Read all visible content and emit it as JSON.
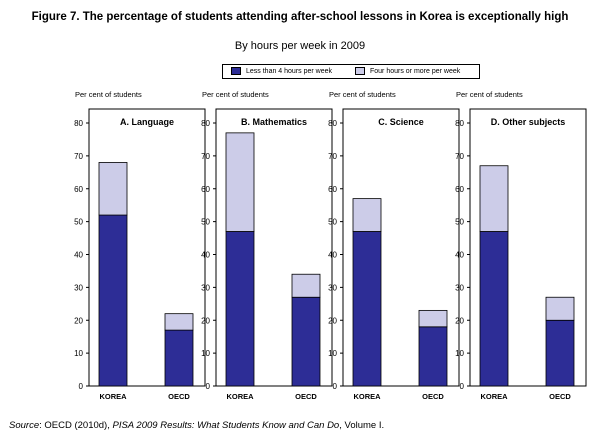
{
  "title": "Figure 7. The percentage of students attending after-school lessons in Korea is exceptionally high",
  "subtitle": "By hours per week in 2009",
  "colors": {
    "less": "#2d2d96",
    "more": "#cccce8"
  },
  "legend": {
    "less_label": "Less than 4 hours per week",
    "more_label": "Four hours or more per week"
  },
  "footer": {
    "source_label": "Source",
    "source_text": ": OECD (2010d), ",
    "source_title": "PISA 2009 Results: What Students Know and Can Do",
    "source_tail": ", Volume I."
  },
  "chart_data": [
    {
      "type": "bar",
      "title": "A. Language",
      "ylabel": "Per cent of students",
      "ylim": [
        0,
        80
      ],
      "yticks": [
        0,
        10,
        20,
        30,
        40,
        50,
        60,
        70,
        80
      ],
      "categories": [
        "KOREA",
        "OECD"
      ],
      "series": [
        {
          "name": "Less than 4 hours per week",
          "values": [
            52,
            17
          ]
        },
        {
          "name": "Four hours or more per week",
          "values": [
            16,
            5
          ]
        }
      ]
    },
    {
      "type": "bar",
      "title": "B. Mathematics",
      "ylabel": "Per cent of students",
      "ylim": [
        0,
        80
      ],
      "yticks": [
        0,
        10,
        20,
        30,
        40,
        50,
        60,
        70,
        80
      ],
      "categories": [
        "KOREA",
        "OECD"
      ],
      "series": [
        {
          "name": "Less than 4 hours per week",
          "values": [
            47,
            27
          ]
        },
        {
          "name": "Four hours or more per week",
          "values": [
            30,
            7
          ]
        }
      ]
    },
    {
      "type": "bar",
      "title": "C. Science",
      "ylabel": "Per cent of students",
      "ylim": [
        0,
        80
      ],
      "yticks": [
        0,
        10,
        20,
        30,
        40,
        50,
        60,
        70,
        80
      ],
      "categories": [
        "KOREA",
        "OECD"
      ],
      "series": [
        {
          "name": "Less than 4 hours per week",
          "values": [
            47,
            18
          ]
        },
        {
          "name": "Four hours or more per week",
          "values": [
            10,
            5
          ]
        }
      ]
    },
    {
      "type": "bar",
      "title": "D. Other subjects",
      "ylabel": "Per cent of students",
      "ylim": [
        0,
        80
      ],
      "yticks": [
        0,
        10,
        20,
        30,
        40,
        50,
        60,
        70,
        80
      ],
      "categories": [
        "KOREA",
        "OECD"
      ],
      "series": [
        {
          "name": "Less than 4 hours per week",
          "values": [
            47,
            20
          ]
        },
        {
          "name": "Four hours or more per week",
          "values": [
            20,
            7
          ]
        }
      ]
    }
  ]
}
